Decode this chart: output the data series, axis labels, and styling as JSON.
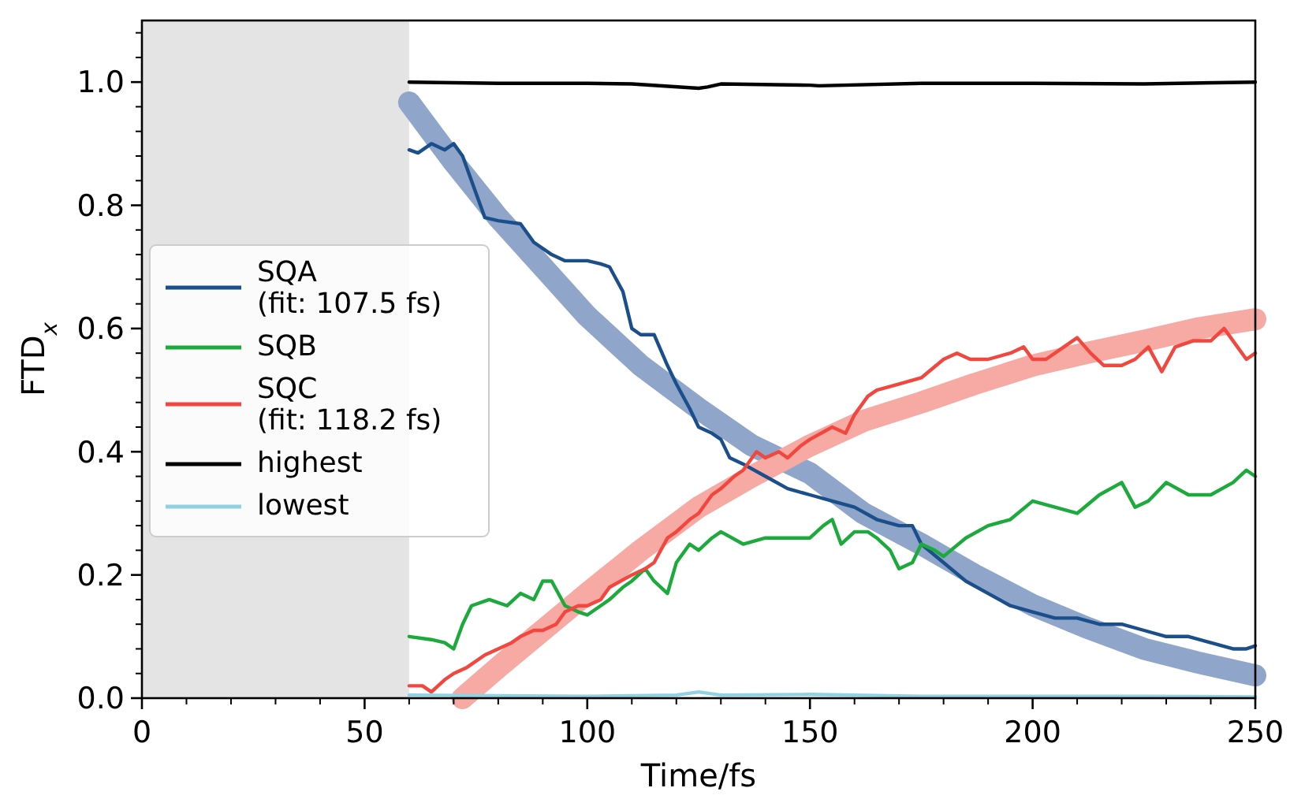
{
  "chart_data": {
    "type": "line",
    "xlabel": "Time/fs",
    "ylabel": "FTD$_{x}$",
    "xlim": [
      0,
      250
    ],
    "ylim": [
      0,
      1.1
    ],
    "xticks": [
      0,
      {
        "value": 10,
        "label": null
      },
      {
        "value": 20,
        "label": null
      },
      {
        "value": 30,
        "label": null
      },
      {
        "value": 40,
        "label": null
      },
      50,
      {
        "value": 60,
        "label": null
      },
      {
        "value": 70,
        "label": null
      },
      {
        "value": 80,
        "label": null
      },
      {
        "value": 90,
        "label": null
      },
      100,
      {
        "value": 110,
        "label": null
      },
      {
        "value": 120,
        "label": null
      },
      {
        "value": 130,
        "label": null
      },
      {
        "value": 140,
        "label": null
      },
      150,
      {
        "value": 160,
        "label": null
      },
      {
        "value": 170,
        "label": null
      },
      {
        "value": 180,
        "label": null
      },
      {
        "value": 190,
        "label": null
      },
      200,
      {
        "value": 210,
        "label": null
      },
      {
        "value": 220,
        "label": null
      },
      {
        "value": 230,
        "label": null
      },
      {
        "value": 240,
        "label": null
      },
      250
    ],
    "yticks": [
      {
        "value": 0,
        "label": "0.0"
      },
      {
        "value": 0.04,
        "label": null
      },
      {
        "value": 0.08,
        "label": null
      },
      {
        "value": 0.12,
        "label": null
      },
      {
        "value": 0.16,
        "label": null
      },
      {
        "value": 0.2,
        "label": "0.2"
      },
      {
        "value": 0.24,
        "label": null
      },
      {
        "value": 0.28,
        "label": null
      },
      {
        "value": 0.32,
        "label": null
      },
      {
        "value": 0.36,
        "label": null
      },
      {
        "value": 0.4,
        "label": "0.4"
      },
      {
        "value": 0.44,
        "label": null
      },
      {
        "value": 0.48,
        "label": null
      },
      {
        "value": 0.52,
        "label": null
      },
      {
        "value": 0.56,
        "label": null
      },
      {
        "value": 0.6,
        "label": "0.6"
      },
      {
        "value": 0.64,
        "label": null
      },
      {
        "value": 0.68,
        "label": null
      },
      {
        "value": 0.72,
        "label": null
      },
      {
        "value": 0.76,
        "label": null
      },
      {
        "value": 0.8,
        "label": "0.8"
      },
      {
        "value": 0.84,
        "label": null
      },
      {
        "value": 0.88,
        "label": null
      },
      {
        "value": 0.92,
        "label": null
      },
      {
        "value": 0.96,
        "label": null
      },
      {
        "value": 1.0,
        "label": "1.0"
      },
      {
        "value": 1.04,
        "label": null
      },
      {
        "value": 1.08,
        "label": null
      }
    ],
    "grid": false,
    "legend": "left",
    "line_style": "solid",
    "bands": [
      {
        "axis": "x",
        "from": 0,
        "to": 60,
        "color": "#e4e4e4"
      }
    ],
    "series": [
      {
        "type": "line",
        "color": "#8fa5c9",
        "x": [
          60,
          70,
          80,
          90,
          100,
          112,
          125,
          137,
          150,
          162,
          175,
          187,
          200,
          212,
          225,
          237,
          250
        ],
        "values": [
          0.967,
          0.87,
          0.78,
          0.7,
          0.62,
          0.54,
          0.47,
          0.41,
          0.365,
          0.3,
          0.25,
          0.2,
          0.151,
          0.115,
          0.08,
          0.058,
          0.037
        ]
      },
      {
        "type": "line",
        "color": "#f7a9a4",
        "x": [
          72,
          80,
          90,
          100,
          112,
          125,
          137,
          150,
          162,
          175,
          187,
          200,
          212,
          225,
          237,
          250
        ],
        "values": [
          0,
          0.05,
          0.11,
          0.17,
          0.24,
          0.31,
          0.36,
          0.41,
          0.45,
          0.48,
          0.51,
          0.54,
          0.56,
          0.58,
          0.6,
          0.615
        ]
      },
      {
        "name": "SQA\n(fit: 107.5 fs)",
        "color": "#1b4f8c",
        "x": [
          60,
          62,
          65,
          68,
          70,
          72,
          75,
          77,
          80,
          85,
          88,
          92,
          95,
          100,
          103,
          105,
          108,
          110,
          112,
          115,
          118,
          120,
          123,
          125,
          128,
          130,
          132,
          135,
          140,
          145,
          150,
          155,
          160,
          165,
          170,
          173,
          175,
          180,
          185,
          190,
          195,
          200,
          205,
          210,
          215,
          220,
          225,
          230,
          235,
          240,
          245,
          248,
          250
        ],
        "values": [
          0.89,
          0.885,
          0.9,
          0.89,
          0.9,
          0.88,
          0.82,
          0.78,
          0.775,
          0.77,
          0.74,
          0.72,
          0.71,
          0.71,
          0.705,
          0.7,
          0.66,
          0.6,
          0.59,
          0.59,
          0.54,
          0.51,
          0.47,
          0.44,
          0.43,
          0.42,
          0.39,
          0.38,
          0.36,
          0.34,
          0.33,
          0.32,
          0.31,
          0.29,
          0.28,
          0.28,
          0.25,
          0.22,
          0.19,
          0.17,
          0.15,
          0.14,
          0.13,
          0.13,
          0.12,
          0.12,
          0.11,
          0.1,
          0.1,
          0.09,
          0.08,
          0.08,
          0.085
        ]
      },
      {
        "name": "SQB",
        "color": "#1caa3c",
        "x": [
          60,
          65,
          68,
          70,
          72,
          74,
          78,
          82,
          85,
          88,
          90,
          92,
          95,
          98,
          100,
          103,
          105,
          108,
          110,
          113,
          115,
          118,
          120,
          123,
          125,
          128,
          130,
          135,
          140,
          145,
          150,
          153,
          155,
          157,
          160,
          163,
          165,
          168,
          170,
          173,
          175,
          178,
          180,
          185,
          190,
          195,
          200,
          205,
          210,
          215,
          220,
          223,
          226,
          230,
          235,
          240,
          245,
          248,
          250
        ],
        "values": [
          0.1,
          0.095,
          0.09,
          0.08,
          0.12,
          0.15,
          0.16,
          0.15,
          0.17,
          0.16,
          0.19,
          0.19,
          0.15,
          0.14,
          0.135,
          0.15,
          0.16,
          0.18,
          0.19,
          0.21,
          0.19,
          0.17,
          0.22,
          0.25,
          0.24,
          0.26,
          0.27,
          0.25,
          0.26,
          0.26,
          0.26,
          0.28,
          0.29,
          0.25,
          0.27,
          0.27,
          0.26,
          0.24,
          0.21,
          0.22,
          0.25,
          0.24,
          0.23,
          0.26,
          0.28,
          0.29,
          0.32,
          0.31,
          0.3,
          0.33,
          0.35,
          0.31,
          0.32,
          0.35,
          0.33,
          0.33,
          0.35,
          0.37,
          0.36
        ]
      },
      {
        "name": "SQC\n(fit: 118.2 fs)",
        "color": "#f1473e",
        "x": [
          60,
          63,
          65,
          68,
          70,
          73,
          77,
          80,
          83,
          85,
          88,
          90,
          93,
          95,
          98,
          100,
          103,
          105,
          110,
          113,
          115,
          118,
          120,
          123,
          125,
          128,
          130,
          133,
          135,
          138,
          140,
          143,
          145,
          148,
          150,
          155,
          158,
          160,
          163,
          165,
          170,
          175,
          180,
          183,
          186,
          190,
          195,
          198,
          200,
          203,
          207,
          210,
          213,
          216,
          220,
          223,
          226,
          229,
          232,
          236,
          240,
          243,
          246,
          248,
          250
        ],
        "values": [
          0.02,
          0.02,
          0.01,
          0.03,
          0.04,
          0.05,
          0.07,
          0.08,
          0.09,
          0.1,
          0.11,
          0.11,
          0.12,
          0.14,
          0.15,
          0.15,
          0.16,
          0.18,
          0.2,
          0.21,
          0.22,
          0.26,
          0.27,
          0.29,
          0.3,
          0.33,
          0.34,
          0.36,
          0.37,
          0.4,
          0.39,
          0.4,
          0.39,
          0.41,
          0.42,
          0.44,
          0.43,
          0.46,
          0.49,
          0.5,
          0.51,
          0.52,
          0.55,
          0.56,
          0.55,
          0.55,
          0.56,
          0.57,
          0.55,
          0.55,
          0.57,
          0.585,
          0.56,
          0.54,
          0.54,
          0.55,
          0.57,
          0.53,
          0.57,
          0.58,
          0.58,
          0.6,
          0.57,
          0.55,
          0.56
        ]
      },
      {
        "name": "highest",
        "color": "#000000",
        "x": [
          60,
          80,
          100,
          110,
          125,
          127,
          130,
          150,
          152,
          175,
          200,
          225,
          250
        ],
        "values": [
          1.0,
          0.998,
          0.998,
          0.997,
          0.99,
          0.992,
          0.997,
          0.995,
          0.994,
          0.998,
          0.998,
          0.997,
          1.0
        ]
      },
      {
        "name": "lowest",
        "color": "#90d2e2",
        "x": [
          60,
          80,
          100,
          120,
          125,
          130,
          150,
          175,
          200,
          225,
          250
        ],
        "values": [
          0.005,
          0.004,
          0.003,
          0.005,
          0.01,
          0.005,
          0.006,
          0.003,
          0.003,
          0.003,
          0.002
        ]
      }
    ]
  }
}
